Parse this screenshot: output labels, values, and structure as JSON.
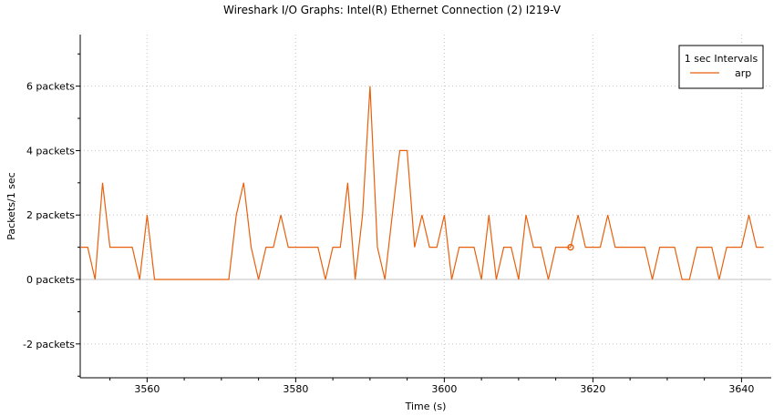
{
  "chart_data": {
    "type": "line",
    "title": "Wireshark I/O Graphs: Intel(R) Ethernet Connection (2) I219-V",
    "xlabel": "Time (s)",
    "ylabel": "Packets/1 sec",
    "xlim": [
      3551,
      3644
    ],
    "ylim": [
      -3.05,
      7.6
    ],
    "x_ticks": [
      3560,
      3580,
      3600,
      3620,
      3640
    ],
    "y_ticks": [
      {
        "value": -2,
        "label": "-2 packets"
      },
      {
        "value": 0,
        "label": "0 packets"
      },
      {
        "value": 2,
        "label": "2 packets"
      },
      {
        "value": 4,
        "label": "4 packets"
      },
      {
        "value": 6,
        "label": "6 packets"
      }
    ],
    "grid": true,
    "legend": {
      "title": "1 sec Intervals",
      "placement": "top-right"
    },
    "marker": {
      "x": 3617,
      "y": 1
    },
    "series": [
      {
        "name": "arp",
        "color": "#e8600c",
        "points": [
          [
            3551,
            1
          ],
          [
            3552,
            1
          ],
          [
            3553,
            0
          ],
          [
            3554,
            3
          ],
          [
            3555,
            1
          ],
          [
            3556,
            1
          ],
          [
            3557,
            1
          ],
          [
            3558,
            1
          ],
          [
            3559,
            0
          ],
          [
            3560,
            2
          ],
          [
            3561,
            0
          ],
          [
            3562,
            0
          ],
          [
            3563,
            0
          ],
          [
            3564,
            0
          ],
          [
            3565,
            0
          ],
          [
            3566,
            0
          ],
          [
            3567,
            0
          ],
          [
            3568,
            0
          ],
          [
            3569,
            0
          ],
          [
            3570,
            0
          ],
          [
            3571,
            0
          ],
          [
            3572,
            2
          ],
          [
            3573,
            3
          ],
          [
            3574,
            1
          ],
          [
            3575,
            0
          ],
          [
            3576,
            1
          ],
          [
            3577,
            1
          ],
          [
            3578,
            2
          ],
          [
            3579,
            1
          ],
          [
            3580,
            1
          ],
          [
            3581,
            1
          ],
          [
            3582,
            1
          ],
          [
            3583,
            1
          ],
          [
            3584,
            0
          ],
          [
            3585,
            1
          ],
          [
            3586,
            1
          ],
          [
            3587,
            3
          ],
          [
            3588,
            0
          ],
          [
            3589,
            2
          ],
          [
            3590,
            6
          ],
          [
            3591,
            1
          ],
          [
            3592,
            0
          ],
          [
            3593,
            2
          ],
          [
            3594,
            4
          ],
          [
            3595,
            4
          ],
          [
            3596,
            1
          ],
          [
            3597,
            2
          ],
          [
            3598,
            1
          ],
          [
            3599,
            1
          ],
          [
            3600,
            2
          ],
          [
            3601,
            0
          ],
          [
            3602,
            1
          ],
          [
            3603,
            1
          ],
          [
            3604,
            1
          ],
          [
            3605,
            0
          ],
          [
            3606,
            2
          ],
          [
            3607,
            0
          ],
          [
            3608,
            1
          ],
          [
            3609,
            1
          ],
          [
            3610,
            0
          ],
          [
            3611,
            2
          ],
          [
            3612,
            1
          ],
          [
            3613,
            1
          ],
          [
            3614,
            0
          ],
          [
            3615,
            1
          ],
          [
            3616,
            1
          ],
          [
            3617,
            1
          ],
          [
            3618,
            2
          ],
          [
            3619,
            1
          ],
          [
            3620,
            1
          ],
          [
            3621,
            1
          ],
          [
            3622,
            2
          ],
          [
            3623,
            1
          ],
          [
            3624,
            1
          ],
          [
            3625,
            1
          ],
          [
            3626,
            1
          ],
          [
            3627,
            1
          ],
          [
            3628,
            0
          ],
          [
            3629,
            1
          ],
          [
            3630,
            1
          ],
          [
            3631,
            1
          ],
          [
            3632,
            0
          ],
          [
            3633,
            0
          ],
          [
            3634,
            1
          ],
          [
            3635,
            1
          ],
          [
            3636,
            1
          ],
          [
            3637,
            0
          ],
          [
            3638,
            1
          ],
          [
            3639,
            1
          ],
          [
            3640,
            1
          ],
          [
            3641,
            2
          ],
          [
            3642,
            1
          ],
          [
            3643,
            1
          ]
        ]
      }
    ]
  }
}
